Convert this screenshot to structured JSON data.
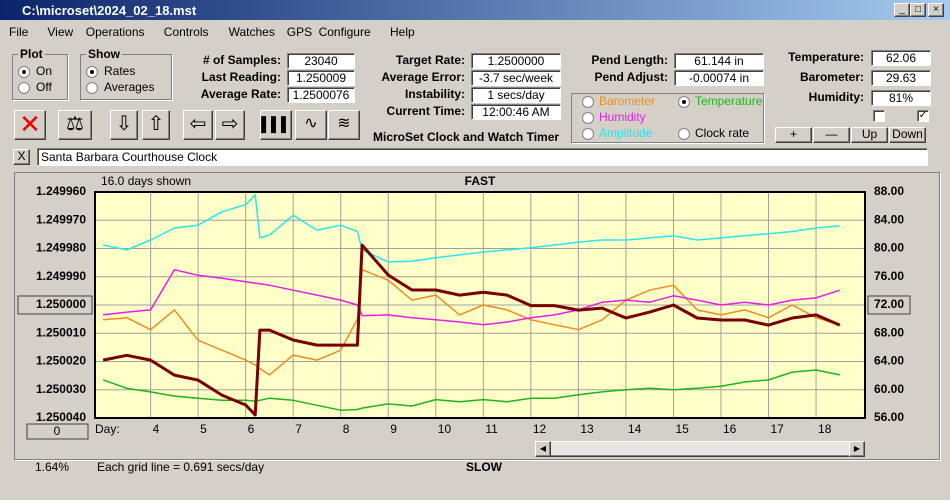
{
  "window": {
    "title": "C:\\microset\\2024_02_18.mst"
  },
  "menu": [
    "File",
    "View",
    "Operations",
    "Controls",
    "Watches",
    "GPS",
    "Configure",
    "Help"
  ],
  "plot_group": {
    "title": "Plot",
    "options": [
      "On",
      "Off"
    ]
  },
  "show_group": {
    "title": "Show",
    "options": [
      "Rates",
      "Averages"
    ]
  },
  "fields_left": [
    {
      "label": "# of Samples:",
      "value": "23040"
    },
    {
      "label": "Last Reading:",
      "value": "1.250009"
    },
    {
      "label": "Average Rate:",
      "value": "1.2500076"
    }
  ],
  "fields_mid": [
    {
      "label": "Target Rate:",
      "value": "1.2500000"
    },
    {
      "label": "Average Error:",
      "value": "-3.7 sec/week"
    },
    {
      "label": "Instability:",
      "value": "1 secs/day"
    },
    {
      "label": "Current Time:",
      "value": "12:00:46 AM"
    }
  ],
  "app_name": "MicroSet Clock and Watch Timer",
  "fields_pend": [
    {
      "label": "Pend Length:",
      "value": "61.144 in"
    },
    {
      "label": "Pend Adjust:",
      "value": "-0.00074 in"
    }
  ],
  "fields_env": [
    {
      "label": "Temperature:",
      "value": "62.06"
    },
    {
      "label": "Barometer:",
      "value": "29.63"
    },
    {
      "label": "Humidity:",
      "value": "81%"
    }
  ],
  "env_buttons": [
    "+",
    "—",
    "Up",
    "Down"
  ],
  "close_button": "X",
  "watch_name": "Santa Barbara Courthouse Clock",
  "chart_data": {
    "type": "line",
    "days_shown": "16.0 days shown",
    "top_label": "FAST",
    "bottom_label": "SLOW",
    "x_label": "Day:",
    "grid_note": "Each grid line = 0.691 secs/day",
    "percent": "1.64%",
    "zero_button": "0",
    "grid": true,
    "selected_series": 1,
    "x": [
      3,
      3.5,
      4,
      4.5,
      5,
      5.5,
      6,
      6.2,
      6.3,
      6.5,
      7,
      7.5,
      8,
      8.35,
      8.45,
      9,
      9.5,
      10,
      10.5,
      11,
      11.5,
      12,
      12.5,
      13,
      13.5,
      14,
      14.5,
      15,
      15.5,
      16,
      16.5,
      17,
      17.5,
      18,
      18.5
    ],
    "xlim": [
      2.83,
      19.03
    ],
    "xticks": [
      4,
      5,
      6,
      7,
      8,
      9,
      10,
      11,
      12,
      13,
      14,
      15,
      16,
      17,
      18
    ],
    "ylim": [
      1.24996,
      1.25004
    ],
    "y_inverted": true,
    "yticks": [
      {
        "value": 1.24996,
        "label": "1.249960"
      },
      {
        "value": 1.24997,
        "label": "1.249970"
      },
      {
        "value": 1.24998,
        "label": "1.249980"
      },
      {
        "value": 1.24999,
        "label": "1.249990"
      },
      {
        "value": 1.25,
        "label": "1.250000"
      },
      {
        "value": 1.25001,
        "label": "1.250010"
      },
      {
        "value": 1.25002,
        "label": "1.250020"
      },
      {
        "value": 1.25003,
        "label": "1.250030"
      },
      {
        "value": 1.25004,
        "label": "1.250040"
      }
    ],
    "y2lim": [
      56,
      88
    ],
    "y2ticks": [
      {
        "value": 88,
        "label": "88.00"
      },
      {
        "value": 84,
        "label": "84.00"
      },
      {
        "value": 80,
        "label": "80.00"
      },
      {
        "value": 76,
        "label": "76.00"
      },
      {
        "value": 72,
        "label": "72.00"
      },
      {
        "value": 68,
        "label": "68.00"
      },
      {
        "value": 64,
        "label": "64.00"
      },
      {
        "value": 60,
        "label": "60.00"
      },
      {
        "value": 56,
        "label": "56.00"
      }
    ],
    "series": [
      {
        "name": "Barometer",
        "color": "#f08c1e",
        "axis": "y2",
        "values": [
          69.9,
          70.2,
          68.5,
          71.3,
          67.0,
          65.6,
          64.2,
          63.5,
          63.0,
          62.1,
          64.9,
          64.2,
          65.6,
          70.0,
          77.0,
          75.5,
          72.7,
          73.4,
          70.6,
          72.0,
          71.3,
          69.9,
          69.2,
          68.5,
          69.9,
          72.7,
          74.1,
          74.8,
          71.3,
          70.6,
          71.3,
          70.2,
          72.0,
          70.2,
          69.2
        ]
      },
      {
        "name": "Temperature",
        "color": "#1eb41e",
        "axis": "y2",
        "values": [
          61.4,
          60.2,
          59.7,
          59.1,
          58.8,
          58.5,
          58.5,
          58.4,
          58.5,
          58.8,
          58.5,
          57.8,
          57.1,
          57.2,
          57.4,
          58.0,
          57.7,
          58.6,
          58.3,
          58.6,
          58.3,
          58.8,
          58.8,
          59.3,
          59.7,
          60.0,
          60.2,
          60.0,
          60.2,
          60.5,
          61.1,
          61.4,
          62.5,
          62.8,
          62.1
        ]
      },
      {
        "name": "Humidity",
        "color": "#e61ee6",
        "axis": "y2",
        "values": [
          70.6,
          71.0,
          71.3,
          77.0,
          76.2,
          75.8,
          75.3,
          75.1,
          75.0,
          74.8,
          74.1,
          73.4,
          72.7,
          72.0,
          70.5,
          70.6,
          70.2,
          69.9,
          69.6,
          69.2,
          69.6,
          70.2,
          70.6,
          71.3,
          72.4,
          72.7,
          72.4,
          73.3,
          72.7,
          72.0,
          72.4,
          72.0,
          72.7,
          73.0,
          74.1
        ]
      },
      {
        "name": "Amplitude",
        "color": "#28e6f0",
        "axis": "y2",
        "values": [
          80.5,
          79.8,
          81.2,
          82.9,
          83.3,
          85.2,
          86.2,
          87.6,
          81.5,
          81.9,
          84.7,
          82.6,
          83.3,
          82.4,
          79.8,
          78.1,
          78.2,
          78.7,
          79.1,
          79.5,
          79.8,
          80.1,
          80.5,
          80.9,
          81.2,
          81.2,
          81.5,
          81.8,
          81.2,
          81.5,
          81.8,
          82.1,
          82.4,
          82.9,
          83.2
        ]
      },
      {
        "name": "Clock rate",
        "color": "#780000",
        "axis": "y",
        "values": [
          1.2500195,
          1.2500178,
          1.2500195,
          1.2500248,
          1.2500266,
          1.2500319,
          1.2500354,
          1.2500389,
          1.2500089,
          1.2500089,
          1.2500124,
          1.2500142,
          1.2500142,
          1.2500142,
          1.2499788,
          1.2499894,
          1.2499947,
          1.2499947,
          1.2499965,
          1.2499955,
          1.2499965,
          1.2500002,
          1.2500002,
          1.2500018,
          1.2500011,
          1.2500046,
          1.2500025,
          1.25,
          1.2500046,
          1.2500053,
          1.2500053,
          1.2500071,
          1.2500046,
          1.2500035,
          1.2500071
        ]
      }
    ]
  }
}
